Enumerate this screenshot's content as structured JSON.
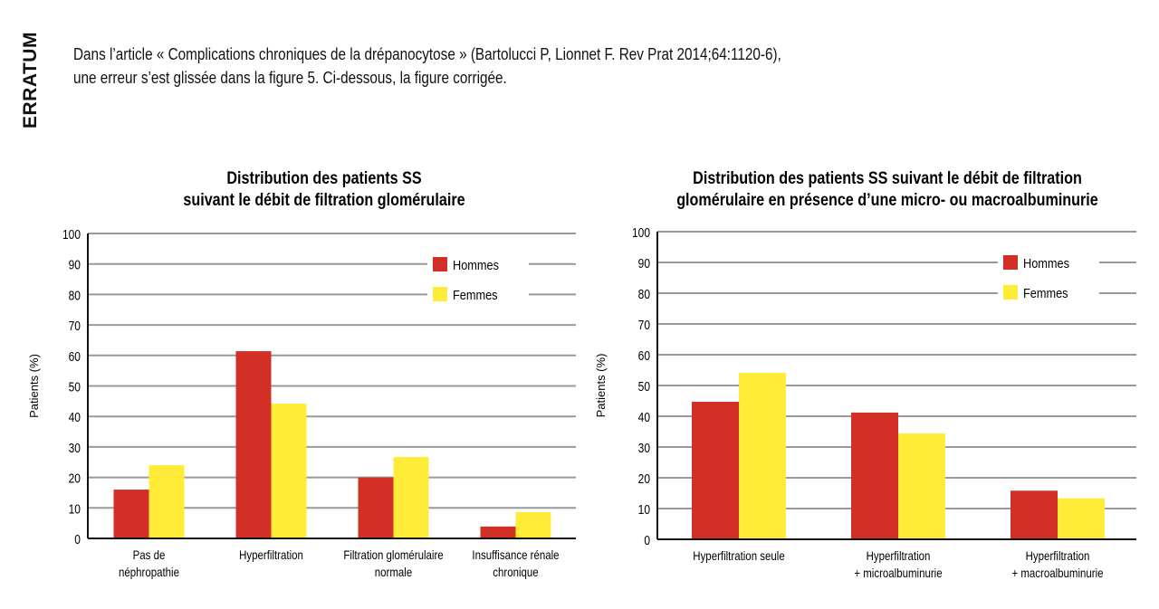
{
  "side_label": "ERRATUM",
  "intro": {
    "line1": "Dans l’article « Complications chroniques de la drépanocytose » (Bartolucci P, Lionnet F. Rev Prat 2014;64:1120-6),",
    "line2": "une erreur s’est glissée dans la figure 5. Ci-dessous, la figure corrigée."
  },
  "colors": {
    "hommes": "#d22f27",
    "femmes": "#ffeb38",
    "grid": "#999999"
  },
  "chart_data": [
    {
      "type": "bar",
      "title": [
        "Distribution des patients SS",
        "suivant le débit de filtration glomérulaire"
      ],
      "ylabel": "Patients (%)",
      "xlabel": "",
      "ylim": [
        0,
        100
      ],
      "yticks": [
        "0",
        "10",
        "20",
        "30",
        "40",
        "50",
        "60",
        "70",
        "80",
        "90",
        "100"
      ],
      "legend": [
        "Hommes",
        "Femmes"
      ],
      "legend_position": "top-right",
      "categories": [
        [
          "Pas de",
          "néphropathie"
        ],
        [
          "Hyperfiltration"
        ],
        [
          "Filtration glomérulaire",
          "normale"
        ],
        [
          "Insuffisance rénale",
          "chronique"
        ]
      ],
      "series": [
        {
          "name": "Hommes",
          "values": [
            16,
            61.4,
            20,
            3.9
          ]
        },
        {
          "name": "Femmes",
          "values": [
            24,
            44.2,
            26.7,
            8.6
          ]
        }
      ]
    },
    {
      "type": "bar",
      "title": [
        "Distribution des patients SS suivant le débit de filtration",
        "glomérulaire en présence d’une micro- ou macroalbuminurie"
      ],
      "ylabel": "Patients (%)",
      "xlabel": "",
      "ylim": [
        0,
        100
      ],
      "yticks": [
        "0",
        "10",
        "20",
        "30",
        "40",
        "50",
        "60",
        "70",
        "80",
        "90",
        "100"
      ],
      "legend": [
        "Hommes",
        "Femmes"
      ],
      "legend_position": "top-right",
      "categories": [
        [
          "Hyperfiltration seule"
        ],
        [
          "Hyperfiltration",
          "+ microalbuminurie"
        ],
        [
          "Hyperfiltration",
          "+ macroalbuminurie"
        ]
      ],
      "series": [
        {
          "name": "Hommes",
          "values": [
            44.7,
            41.2,
            15.8
          ]
        },
        {
          "name": "Femmes",
          "values": [
            54.1,
            34.4,
            13.3
          ]
        }
      ]
    }
  ]
}
